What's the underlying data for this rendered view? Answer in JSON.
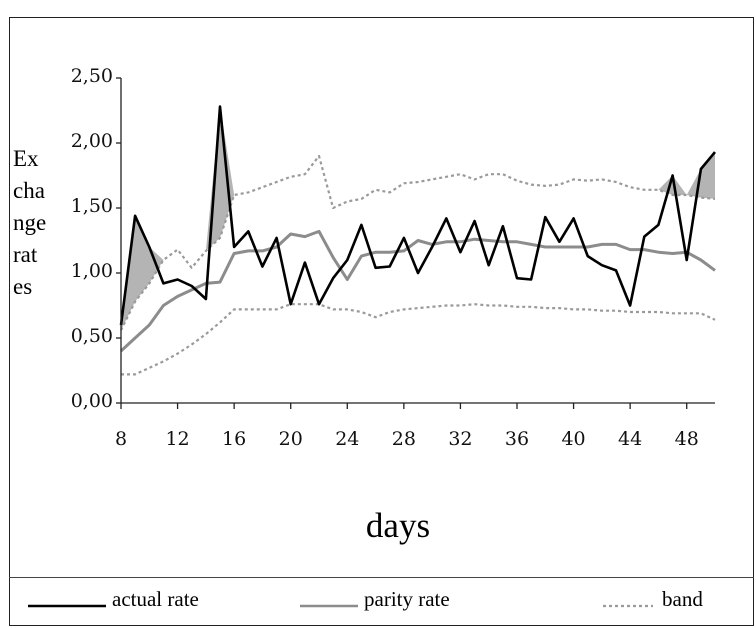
{
  "chart_data": {
    "type": "line",
    "xlabel": "days",
    "ylabel_lines": [
      "Ex",
      "cha",
      "nge",
      "rat",
      "es"
    ],
    "ylim": [
      0,
      2.5
    ],
    "xlim": [
      8,
      50
    ],
    "yticks": [
      {
        "value": 0,
        "label": "0,00"
      },
      {
        "value": 0.5,
        "label": "0,50"
      },
      {
        "value": 1,
        "label": "1,00"
      },
      {
        "value": 1.5,
        "label": "1,50"
      },
      {
        "value": 2,
        "label": "2,00"
      },
      {
        "value": 2.5,
        "label": "2,50"
      }
    ],
    "xticks": [
      {
        "value": 8,
        "label": "8"
      },
      {
        "value": 12,
        "label": "12"
      },
      {
        "value": 16,
        "label": "16"
      },
      {
        "value": 20,
        "label": "20"
      },
      {
        "value": 24,
        "label": "24"
      },
      {
        "value": 28,
        "label": "28"
      },
      {
        "value": 32,
        "label": "32"
      },
      {
        "value": 36,
        "label": "36"
      },
      {
        "value": 40,
        "label": "40"
      },
      {
        "value": 44,
        "label": "44"
      },
      {
        "value": 48,
        "label": "48"
      }
    ],
    "series": [
      {
        "name": "actual rate",
        "color": "#000000",
        "style": "solid",
        "x": [
          8,
          9,
          10,
          11,
          12,
          13,
          14,
          15,
          16,
          17,
          18,
          19,
          20,
          21,
          22,
          23,
          24,
          25,
          26,
          27,
          28,
          29,
          30,
          31,
          32,
          33,
          34,
          35,
          36,
          37,
          38,
          39,
          40,
          41,
          42,
          43,
          44,
          45,
          46,
          47,
          48,
          49,
          50
        ],
        "y": [
          0.6,
          1.44,
          1.2,
          0.92,
          0.95,
          0.9,
          0.8,
          2.28,
          1.2,
          1.32,
          1.05,
          1.27,
          0.76,
          1.08,
          0.76,
          0.96,
          1.1,
          1.37,
          1.04,
          1.05,
          1.27,
          1.0,
          1.2,
          1.42,
          1.16,
          1.4,
          1.06,
          1.36,
          0.96,
          0.95,
          1.43,
          1.24,
          1.42,
          1.13,
          1.06,
          1.02,
          0.75,
          1.28,
          1.37,
          1.75,
          1.1,
          1.8,
          1.93
        ]
      },
      {
        "name": "parity rate",
        "color": "#8c8c8c",
        "style": "solid",
        "x": [
          8,
          9,
          10,
          11,
          12,
          13,
          14,
          15,
          16,
          17,
          18,
          19,
          20,
          21,
          22,
          23,
          24,
          25,
          26,
          27,
          28,
          29,
          30,
          31,
          32,
          33,
          34,
          35,
          36,
          37,
          38,
          39,
          40,
          41,
          42,
          43,
          44,
          45,
          46,
          47,
          48,
          49,
          50
        ],
        "y": [
          0.4,
          0.5,
          0.6,
          0.75,
          0.82,
          0.87,
          0.92,
          0.93,
          1.15,
          1.17,
          1.17,
          1.2,
          1.3,
          1.28,
          1.32,
          1.12,
          0.95,
          1.13,
          1.16,
          1.16,
          1.17,
          1.25,
          1.22,
          1.24,
          1.24,
          1.26,
          1.25,
          1.24,
          1.24,
          1.22,
          1.2,
          1.2,
          1.2,
          1.2,
          1.22,
          1.22,
          1.18,
          1.18,
          1.16,
          1.15,
          1.16,
          1.1,
          1.02
        ]
      },
      {
        "name": "band",
        "color": "#9a9a9a",
        "style": "dotted",
        "x": [
          8,
          9,
          10,
          11,
          12,
          13,
          14,
          15,
          16,
          17,
          18,
          19,
          20,
          21,
          22,
          23,
          24,
          25,
          26,
          27,
          28,
          29,
          30,
          31,
          32,
          33,
          34,
          35,
          36,
          37,
          38,
          39,
          40,
          41,
          42,
          43,
          44,
          45,
          46,
          47,
          48,
          49,
          50
        ],
        "y": [
          0.56,
          0.78,
          0.92,
          1.1,
          1.18,
          1.04,
          1.17,
          1.27,
          1.6,
          1.62,
          1.66,
          1.7,
          1.74,
          1.76,
          1.9,
          1.5,
          1.55,
          1.57,
          1.64,
          1.62,
          1.69,
          1.7,
          1.72,
          1.74,
          1.76,
          1.72,
          1.76,
          1.76,
          1.71,
          1.68,
          1.67,
          1.68,
          1.72,
          1.71,
          1.72,
          1.7,
          1.66,
          1.64,
          1.64,
          1.6,
          1.6,
          1.58,
          1.57
        ]
      },
      {
        "name": "band",
        "color": "#9a9a9a",
        "style": "dotted",
        "x": [
          8,
          9,
          10,
          11,
          12,
          13,
          14,
          15,
          16,
          17,
          18,
          19,
          20,
          21,
          22,
          23,
          24,
          25,
          26,
          27,
          28,
          29,
          30,
          31,
          32,
          33,
          34,
          35,
          36,
          37,
          38,
          39,
          40,
          41,
          42,
          43,
          44,
          45,
          46,
          47,
          48,
          49,
          50
        ],
        "y": [
          0.22,
          0.22,
          0.27,
          0.32,
          0.38,
          0.45,
          0.53,
          0.62,
          0.72,
          0.72,
          0.72,
          0.72,
          0.76,
          0.76,
          0.76,
          0.72,
          0.72,
          0.7,
          0.66,
          0.7,
          0.72,
          0.73,
          0.74,
          0.75,
          0.75,
          0.76,
          0.75,
          0.75,
          0.74,
          0.74,
          0.73,
          0.73,
          0.72,
          0.72,
          0.71,
          0.71,
          0.7,
          0.7,
          0.7,
          0.69,
          0.69,
          0.69,
          0.64
        ]
      }
    ],
    "legend": [
      {
        "label": "actual rate",
        "color": "#000000",
        "style": "solid"
      },
      {
        "label": "parity rate",
        "color": "#8c8c8c",
        "style": "solid"
      },
      {
        "label": "band",
        "color": "#9a9a9a",
        "style": "dotted"
      }
    ],
    "fill_color": "#b4b4b4"
  }
}
